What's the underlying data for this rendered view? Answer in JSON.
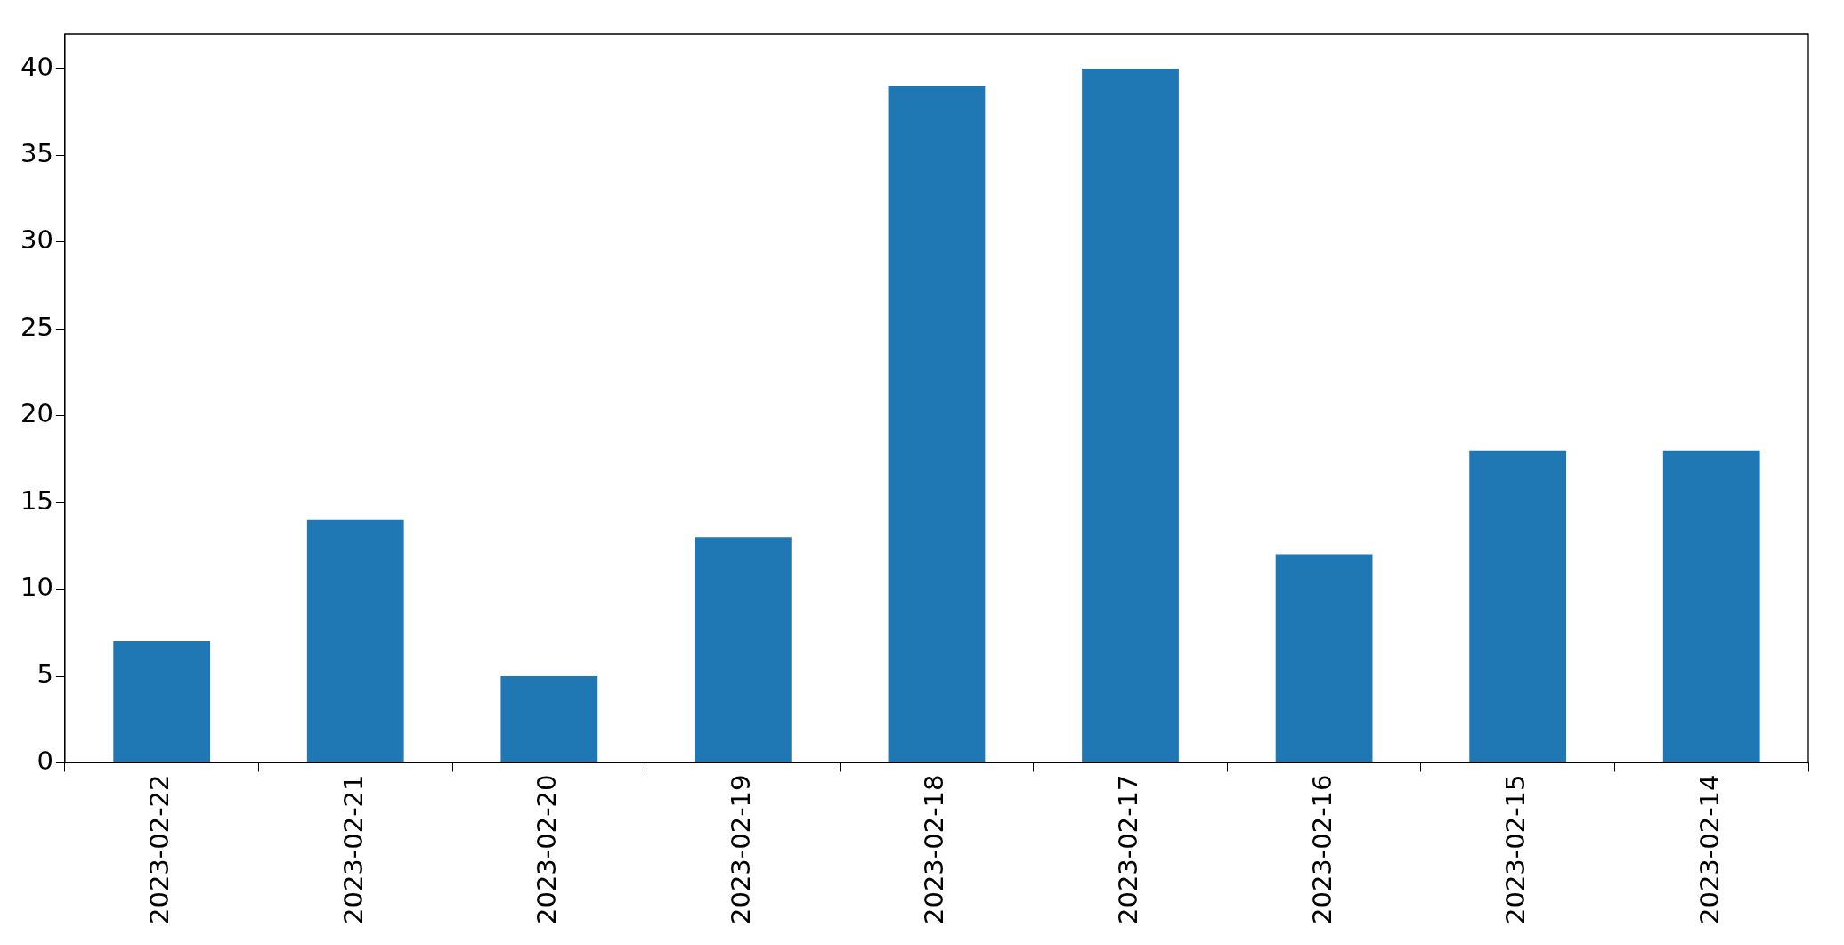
{
  "chart_data": {
    "type": "bar",
    "categories": [
      "2023-02-22",
      "2023-02-21",
      "2023-02-20",
      "2023-02-19",
      "2023-02-18",
      "2023-02-17",
      "2023-02-16",
      "2023-02-15",
      "2023-02-14"
    ],
    "values": [
      7,
      14,
      5,
      13,
      39,
      40,
      12,
      18,
      18
    ],
    "color": "#1f77b4",
    "ylim": [
      0,
      42
    ],
    "yticks": [
      0,
      5,
      10,
      15,
      20,
      25,
      30,
      35,
      40
    ],
    "grid": false,
    "legend": false
  }
}
